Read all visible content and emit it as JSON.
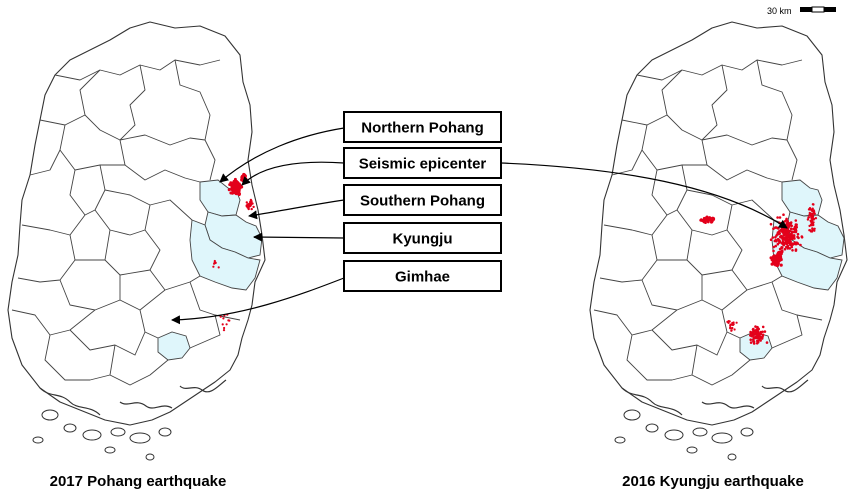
{
  "scale_bar": {
    "label": "30 km"
  },
  "labels": [
    {
      "id": "northern-pohang",
      "text": "Northern Pohang"
    },
    {
      "id": "seismic-epicenter",
      "text": "Seismic epicenter"
    },
    {
      "id": "southern-pohang",
      "text": "Southern Pohang"
    },
    {
      "id": "kyungju",
      "text": "Kyungju"
    },
    {
      "id": "gimhae",
      "text": "Gimhae"
    }
  ],
  "maps": [
    {
      "id": "pohang-2017",
      "caption": "2017 Pohang earthquake"
    },
    {
      "id": "kyungju-2016",
      "caption": "2016 Kyungju earthquake"
    }
  ],
  "colors": {
    "highlight_region": "#dff6fb",
    "event_points": "#e3001b",
    "border": "#444444",
    "box_stroke": "#000000"
  }
}
